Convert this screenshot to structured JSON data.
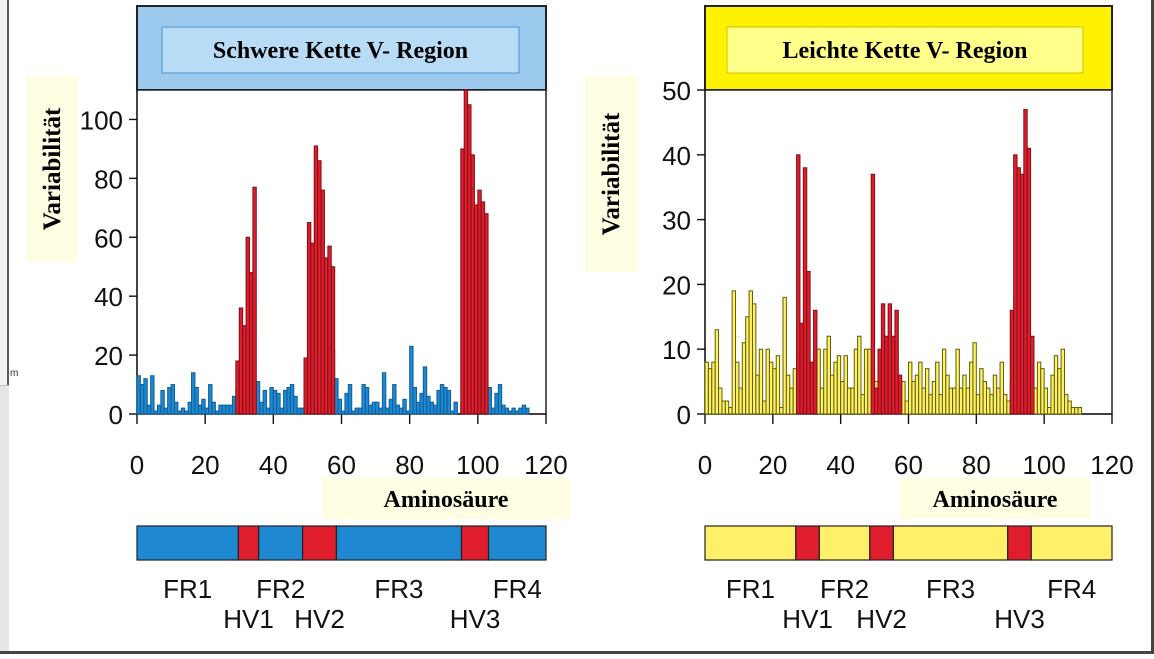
{
  "colors": {
    "heavy_header": "#9cc9ee",
    "heavy_header_border": "#4f94cf",
    "heavy_title_box": "#b9dcf6",
    "light_header": "#fff200",
    "light_header_border": "#d1c300",
    "light_title_box": "#ffff8a",
    "heavy_bar": "#1e88d1",
    "light_bar": "#fff06a",
    "light_bar_stroke": "#5f5f00",
    "hv": "#e01d2c",
    "label_bg": "#fffde2"
  },
  "left_stub_text": "m",
  "chart_data": [
    {
      "type": "bar",
      "title": "Schwere Kette V- Region",
      "xlabel": "Aminosäure",
      "ylabel": "Variabilität",
      "xlim": [
        0,
        120
      ],
      "ylim": [
        0,
        110
      ],
      "x_ticks": [
        "0",
        "20",
        "40",
        "60",
        "80",
        "100",
        "120"
      ],
      "y_ticks": [
        "0",
        "20",
        "40",
        "60",
        "80",
        "100"
      ],
      "series": [
        {
          "kind": "framework",
          "start": 0,
          "values": [
            13,
            10,
            12,
            3,
            13,
            1,
            3,
            8,
            2,
            9,
            10,
            4,
            1,
            2,
            1,
            4,
            14,
            9,
            3,
            5,
            2,
            10,
            4,
            1,
            3,
            3,
            3,
            3,
            6,
            9,
            1,
            7,
            3,
            4,
            7,
            11,
            4,
            8,
            2,
            9,
            8,
            7,
            2,
            8,
            9,
            10,
            6,
            2,
            2,
            5,
            2,
            6,
            1,
            7,
            3,
            4,
            15,
            22,
            12,
            5,
            1,
            7,
            10,
            1,
            2,
            2,
            10,
            9,
            3,
            4,
            4,
            2,
            14,
            2,
            5,
            10,
            3,
            2,
            5,
            1,
            23,
            9,
            4,
            7,
            16,
            6,
            4,
            3,
            8,
            10,
            9,
            8,
            1,
            4,
            0,
            4,
            4,
            1,
            6,
            13,
            3,
            8,
            5,
            9,
            2,
            7,
            10,
            3,
            2,
            1,
            2,
            1,
            2,
            3,
            2,
            0,
            0,
            0,
            0,
            0
          ]
        },
        {
          "kind": "hypervariable",
          "start": 29,
          "values": [
            18,
            36,
            30,
            60,
            48,
            77
          ]
        },
        {
          "kind": "hypervariable",
          "start": 49,
          "values": [
            19,
            65,
            58,
            91,
            86,
            76,
            53,
            57,
            50
          ]
        },
        {
          "kind": "hypervariable",
          "start": 95,
          "values": [
            90,
            110,
            105,
            88,
            71,
            76,
            72,
            68
          ]
        }
      ],
      "segments": [
        {
          "label": "FR1",
          "start": 0,
          "end": 30,
          "kind": "fr"
        },
        {
          "label": "HV1",
          "start": 30,
          "end": 36,
          "kind": "hv"
        },
        {
          "label": "FR2",
          "start": 36,
          "end": 49,
          "kind": "fr"
        },
        {
          "label": "HV2",
          "start": 49,
          "end": 59,
          "kind": "hv"
        },
        {
          "label": "FR3",
          "start": 59,
          "end": 96,
          "kind": "fr"
        },
        {
          "label": "HV3",
          "start": 96,
          "end": 104,
          "kind": "hv"
        },
        {
          "label": "FR4",
          "start": 104,
          "end": 121,
          "kind": "fr"
        }
      ]
    },
    {
      "type": "bar",
      "title": "Leichte Kette V- Region",
      "xlabel": "Aminosäure",
      "ylabel": "Variabilität",
      "xlim": [
        0,
        120
      ],
      "ylim": [
        0,
        50
      ],
      "x_ticks": [
        "0",
        "20",
        "40",
        "60",
        "80",
        "100",
        "120"
      ],
      "y_ticks": [
        "0",
        "10",
        "20",
        "30",
        "40",
        "50"
      ],
      "series": [
        {
          "kind": "framework",
          "start": 0,
          "values": [
            8,
            7,
            8,
            13,
            4,
            2,
            2,
            1,
            19,
            8,
            4,
            11,
            15,
            19,
            17,
            6,
            10,
            2,
            10,
            8,
            7,
            9,
            1,
            18,
            6,
            4,
            7,
            9,
            13,
            4,
            5,
            8,
            6,
            10,
            4,
            10,
            12,
            6,
            8,
            9,
            5,
            9,
            4,
            4,
            10,
            12,
            3,
            10,
            10,
            7,
            5,
            2,
            6,
            3,
            4,
            8,
            4,
            3,
            5,
            2,
            8,
            5,
            6,
            8,
            4,
            7,
            3,
            5,
            8,
            3,
            10,
            6,
            4,
            4,
            10,
            4,
            6,
            4,
            8,
            11,
            3,
            7,
            5,
            4,
            3,
            6,
            4,
            8,
            3,
            2,
            5,
            5,
            7,
            6,
            11,
            6,
            10,
            4,
            8,
            7,
            4,
            1,
            6,
            9,
            7,
            10,
            3,
            2,
            1,
            1,
            1,
            0,
            0,
            0,
            0,
            0,
            0,
            0,
            0,
            0
          ]
        },
        {
          "kind": "hypervariable",
          "start": 27,
          "values": [
            40,
            14,
            38,
            22,
            8,
            16
          ]
        },
        {
          "kind": "hypervariable",
          "start": 49,
          "values": [
            37,
            4,
            10,
            17,
            12,
            17,
            12,
            16,
            6
          ]
        },
        {
          "kind": "hypervariable",
          "start": 90,
          "values": [
            16,
            40,
            38,
            37,
            47,
            41,
            12
          ]
        }
      ],
      "segments": [
        {
          "label": "FR1",
          "start": 0,
          "end": 27,
          "kind": "fr"
        },
        {
          "label": "HV1",
          "start": 27,
          "end": 34,
          "kind": "hv"
        },
        {
          "label": "FR2",
          "start": 34,
          "end": 49,
          "kind": "fr"
        },
        {
          "label": "HV2",
          "start": 49,
          "end": 56,
          "kind": "hv"
        },
        {
          "label": "FR3",
          "start": 56,
          "end": 90,
          "kind": "fr"
        },
        {
          "label": "HV3",
          "start": 90,
          "end": 97,
          "kind": "hv"
        },
        {
          "label": "FR4",
          "start": 97,
          "end": 121,
          "kind": "fr"
        }
      ]
    }
  ]
}
